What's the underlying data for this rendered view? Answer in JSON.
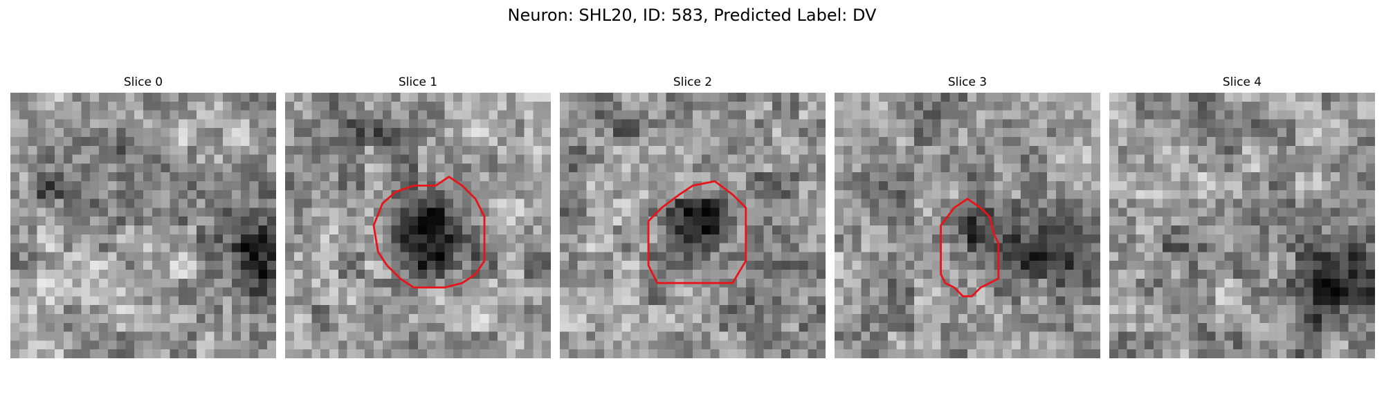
{
  "figure": {
    "title": "Neuron: SHL20, ID: 583, Predicted Label: DV"
  },
  "panels": [
    {
      "title": "Slice 0",
      "has_contour": false,
      "dark_blobs": [
        {
          "cx": 28,
          "cy": 19,
          "rx": 4,
          "ry": 6,
          "strength": 0.95
        },
        {
          "cx": 6,
          "cy": 11,
          "rx": 8,
          "ry": 2.5,
          "strength": 0.35
        },
        {
          "cx": 11,
          "cy": 6,
          "rx": 6,
          "ry": 3,
          "strength": 0.3
        }
      ],
      "light_blobs": [
        {
          "cx": 11,
          "cy": 22,
          "rx": 12,
          "ry": 6,
          "strength": 0.3
        },
        {
          "cx": 18,
          "cy": 5,
          "rx": 6,
          "ry": 3,
          "strength": 0.2
        }
      ]
    },
    {
      "title": "Slice 1",
      "has_contour": true,
      "contour": [
        [
          14.5,
          10.5
        ],
        [
          17,
          10.5
        ],
        [
          18.5,
          9.5
        ],
        [
          20,
          10.5
        ],
        [
          21.5,
          12
        ],
        [
          22.5,
          14
        ],
        [
          22.5,
          19
        ],
        [
          21.5,
          20.5
        ],
        [
          20,
          21.5
        ],
        [
          18,
          22
        ],
        [
          14.5,
          22
        ],
        [
          13,
          21
        ],
        [
          11.5,
          19.5
        ],
        [
          10.5,
          18
        ],
        [
          10,
          15
        ],
        [
          11,
          12.5
        ],
        [
          12.5,
          11.2
        ]
      ],
      "dark_blobs": [
        {
          "cx": 16.5,
          "cy": 16,
          "rx": 5.2,
          "ry": 5.2,
          "strength": 0.95
        },
        {
          "cx": 9,
          "cy": 4,
          "rx": 8,
          "ry": 3,
          "strength": 0.25
        }
      ],
      "light_blobs": [
        {
          "cx": 14,
          "cy": 25,
          "rx": 11,
          "ry": 3.5,
          "strength": 0.3
        },
        {
          "cx": 23,
          "cy": 6,
          "rx": 6,
          "ry": 4,
          "strength": 0.2
        }
      ]
    },
    {
      "title": "Slice 2",
      "has_contour": true,
      "contour": [
        [
          13.5,
          11.5
        ],
        [
          15,
          10.5
        ],
        [
          17.5,
          10
        ],
        [
          19.5,
          11.5
        ],
        [
          21,
          13
        ],
        [
          21,
          19
        ],
        [
          19.5,
          21.5
        ],
        [
          11,
          21.5
        ],
        [
          10,
          19.5
        ],
        [
          10,
          14.5
        ],
        [
          11.5,
          13
        ]
      ],
      "dark_blobs": [
        {
          "cx": 16,
          "cy": 15,
          "rx": 3.8,
          "ry": 4.5,
          "strength": 0.75
        },
        {
          "cx": 6,
          "cy": 2,
          "rx": 7,
          "ry": 2.5,
          "strength": 0.3
        },
        {
          "cx": 22,
          "cy": 24,
          "rx": 5,
          "ry": 4,
          "strength": 0.2
        }
      ],
      "light_blobs": [
        {
          "cx": 6,
          "cy": 20,
          "rx": 5,
          "ry": 8,
          "strength": 0.15
        }
      ]
    },
    {
      "title": "Slice 3",
      "has_contour": true,
      "contour": [
        [
          13.5,
          13
        ],
        [
          15,
          12
        ],
        [
          16.5,
          13
        ],
        [
          17.5,
          14
        ],
        [
          18,
          16
        ],
        [
          18.5,
          17
        ],
        [
          18.5,
          21
        ],
        [
          17.5,
          21.5
        ],
        [
          16.5,
          22
        ],
        [
          15.5,
          23
        ],
        [
          14.5,
          23
        ],
        [
          13.5,
          22
        ],
        [
          12.5,
          21.5
        ],
        [
          12,
          20.5
        ],
        [
          12,
          15
        ]
      ],
      "dark_blobs": [
        {
          "cx": 24,
          "cy": 17,
          "rx": 7,
          "ry": 6,
          "strength": 0.55
        },
        {
          "cx": 15,
          "cy": 16,
          "rx": 3,
          "ry": 3,
          "strength": 0.5
        },
        {
          "cx": 4,
          "cy": 10,
          "rx": 4,
          "ry": 4,
          "strength": 0.2
        }
      ],
      "light_blobs": [
        {
          "cx": 16,
          "cy": 24,
          "rx": 7,
          "ry": 4,
          "strength": 0.25
        }
      ]
    },
    {
      "title": "Slice 4",
      "has_contour": false,
      "dark_blobs": [
        {
          "cx": 26,
          "cy": 21,
          "rx": 6,
          "ry": 7,
          "strength": 0.55
        },
        {
          "cx": 14,
          "cy": 3.5,
          "rx": 5,
          "ry": 3,
          "strength": 0.35
        },
        {
          "cx": 8,
          "cy": 18,
          "rx": 4,
          "ry": 4,
          "strength": 0.15
        }
      ],
      "light_blobs": [
        {
          "cx": 10,
          "cy": 11,
          "rx": 9,
          "ry": 7,
          "strength": 0.2
        },
        {
          "cx": 26,
          "cy": 6,
          "rx": 6,
          "ry": 4,
          "strength": 0.15
        }
      ]
    }
  ],
  "colors": {
    "contour": "#e8141a",
    "background": "#ffffff"
  }
}
